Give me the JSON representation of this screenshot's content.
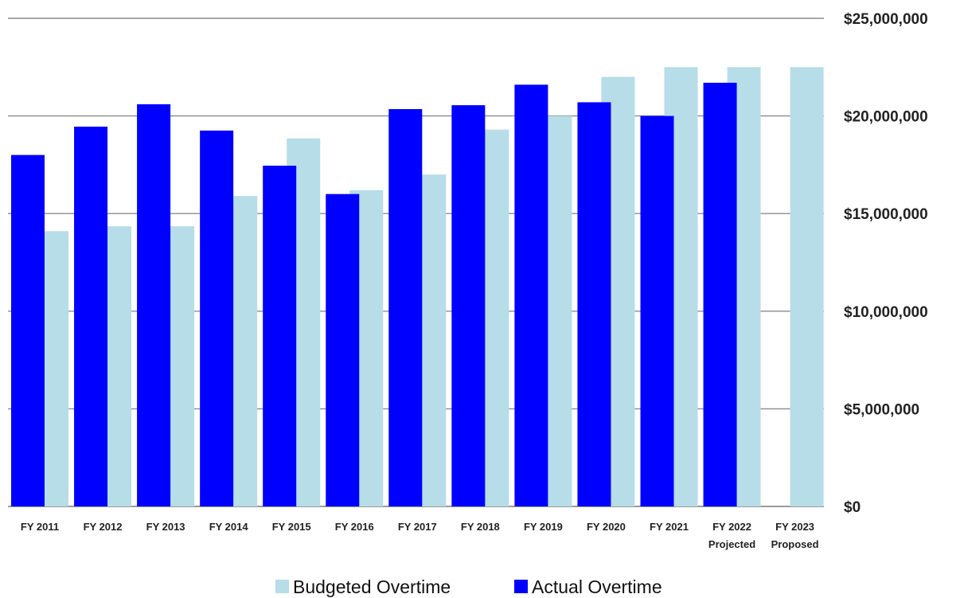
{
  "chart_data": {
    "type": "bar",
    "title": "",
    "xlabel": "",
    "ylabel": "",
    "categories": [
      [
        "FY 2011"
      ],
      [
        "FY 2012"
      ],
      [
        "FY 2013"
      ],
      [
        "FY 2014"
      ],
      [
        "FY 2015"
      ],
      [
        "FY 2016"
      ],
      [
        "FY 2017"
      ],
      [
        "FY 2018"
      ],
      [
        "FY 2019"
      ],
      [
        "FY 2020"
      ],
      [
        "FY 2021"
      ],
      [
        "FY 2022",
        "Projected"
      ],
      [
        "FY 2023",
        "Proposed"
      ]
    ],
    "series": [
      {
        "name": "Actual Overtime",
        "color": "#0000ff",
        "values": [
          18000000,
          19450000,
          20600000,
          19250000,
          17450000,
          16000000,
          20350000,
          20550000,
          21600000,
          20700000,
          20000000,
          21700000,
          null
        ]
      },
      {
        "name": "Budgeted Overtime",
        "color": "#b7dde8",
        "values": [
          14100000,
          14350000,
          14350000,
          15900000,
          18850000,
          16200000,
          17000000,
          19300000,
          20000000,
          22000000,
          22500000,
          22500000,
          22500000
        ]
      }
    ],
    "ylim": [
      0,
      25000000
    ],
    "yticks": [
      {
        "value": 0,
        "label": "$0"
      },
      {
        "value": 5000000,
        "label": "$5,000,000"
      },
      {
        "value": 10000000,
        "label": "$10,000,000"
      },
      {
        "value": 15000000,
        "label": "$15,000,000"
      },
      {
        "value": 20000000,
        "label": "$20,000,000"
      },
      {
        "value": 25000000,
        "label": "$25,000,000"
      }
    ],
    "y_axis_side": "right",
    "grid": true,
    "legend": {
      "position": "bottom",
      "entries": [
        "Budgeted Overtime",
        "Actual Overtime"
      ]
    }
  }
}
